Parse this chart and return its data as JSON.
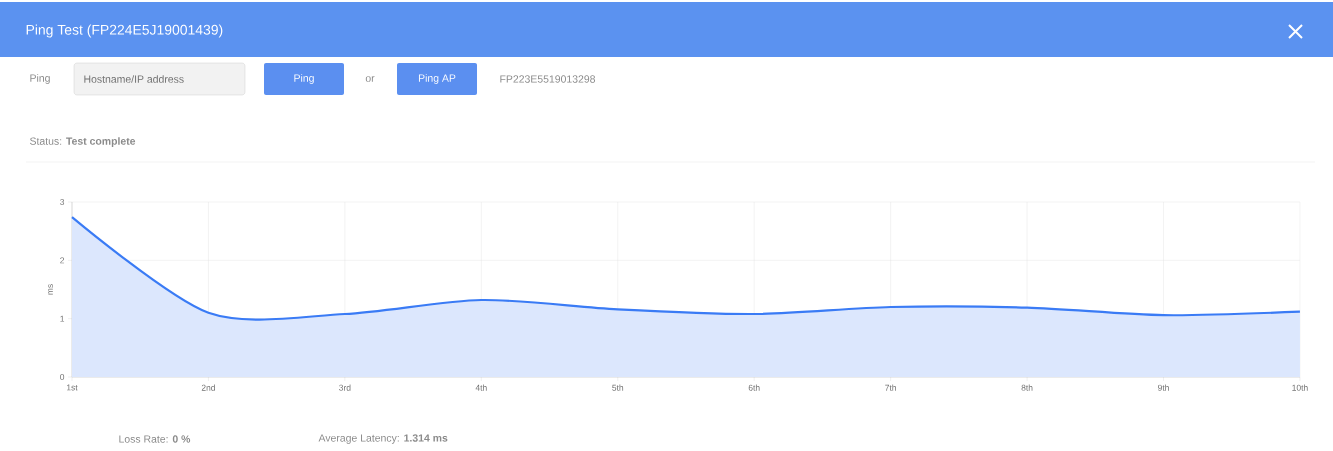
{
  "chart_data": {
    "type": "area",
    "title": "Ping Test (FP224E5J19001439)",
    "ylabel": "ms",
    "categories": [
      "1st",
      "2nd",
      "3rd",
      "4th",
      "5th",
      "6th",
      "7th",
      "8th",
      "9th",
      "10th"
    ],
    "series": [
      {
        "color": "#3a7bf5",
        "values": [
          2.74,
          1.1,
          1.08,
          1.32,
          1.16,
          1.08,
          1.2,
          1.19,
          1.06,
          1.12
        ]
      }
    ],
    "ylim": [
      0,
      3
    ],
    "yticks": [
      0,
      1,
      2,
      3
    ],
    "grid": true,
    "annotations": [
      "Ping",
      "Hostname/IP address",
      "Ping",
      "or",
      "Ping AP",
      "FP223E5519013298",
      "Status: **Test complete**",
      "Loss Rate: **0 %**",
      "Average Latency: **1.314 ms**"
    ]
  }
}
